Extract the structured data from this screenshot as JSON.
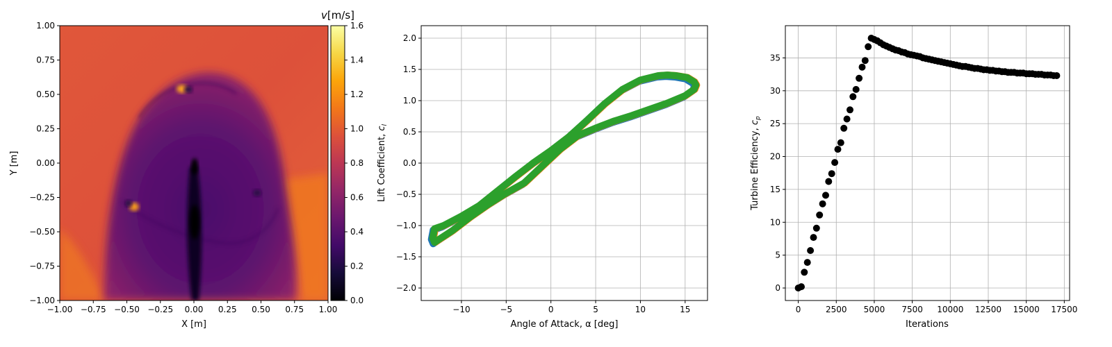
{
  "chart_data": [
    {
      "type": "heatmap",
      "xlabel": "X [m]",
      "ylabel": "Y [m]",
      "xlim": [
        -1.0,
        1.0
      ],
      "ylim": [
        -1.0,
        1.0
      ],
      "xticks": [
        "−1.00",
        "−0.75",
        "−0.50",
        "−0.25",
        "0.00",
        "0.25",
        "0.50",
        "0.75",
        "1.00"
      ],
      "yticks": [
        "−1.00",
        "−0.75",
        "−0.50",
        "−0.25",
        "0.00",
        "0.25",
        "0.50",
        "0.75",
        "1.00"
      ],
      "colorbar": {
        "label_var": "v",
        "label_unit": "[m/s]",
        "range": [
          0.0,
          1.6
        ],
        "ticks": [
          "0.0",
          "0.2",
          "0.4",
          "0.6",
          "0.8",
          "1.0",
          "1.2",
          "1.4",
          "1.6"
        ],
        "colormap": "inferno"
      },
      "features": {
        "background_speed": 0.95,
        "wake_speed": 0.45,
        "core_speed": 0.05,
        "blade_positions": [
          {
            "x": -0.08,
            "y": 0.53
          },
          {
            "x": -0.47,
            "y": -0.33
          },
          {
            "x": 0.47,
            "y": -0.22
          },
          {
            "x": 0.0,
            "y": -0.35
          }
        ]
      }
    },
    {
      "type": "line",
      "xlabel": "Angle of Attack, α [deg]",
      "ylabel_prefix": "Lift Coefficient, ",
      "ylabel_var": "c",
      "ylabel_sub": "l",
      "xlim": [
        -14.5,
        17.5
      ],
      "ylim": [
        -2.2,
        2.2
      ],
      "xticks": [
        -10,
        -5,
        0,
        5,
        10,
        15
      ],
      "yticks": [
        "−2.0",
        "−1.5",
        "−1.0",
        "−0.5",
        "0.0",
        "0.5",
        "1.0",
        "1.5",
        "2.0"
      ],
      "grid": true,
      "series_colors": [
        "#1f77b4",
        "#ff7f0e",
        "#2ca02c"
      ],
      "upper_branch": [
        [
          -13,
          -1.05
        ],
        [
          -12,
          -1.0
        ],
        [
          -10,
          -0.85
        ],
        [
          -8,
          -0.68
        ],
        [
          -6,
          -0.45
        ],
        [
          -4,
          -0.22
        ],
        [
          -2,
          0.0
        ],
        [
          0,
          0.2
        ],
        [
          2,
          0.42
        ],
        [
          4,
          0.68
        ],
        [
          6,
          0.95
        ],
        [
          8,
          1.18
        ],
        [
          10,
          1.33
        ],
        [
          12,
          1.4
        ],
        [
          13,
          1.41
        ],
        [
          14,
          1.4
        ],
        [
          15.2,
          1.37
        ],
        [
          16,
          1.3
        ],
        [
          16.2,
          1.25
        ]
      ],
      "lower_branch": [
        [
          16.2,
          1.25
        ],
        [
          16,
          1.18
        ],
        [
          15,
          1.08
        ],
        [
          13,
          0.96
        ],
        [
          11,
          0.86
        ],
        [
          9,
          0.76
        ],
        [
          7,
          0.67
        ],
        [
          5,
          0.56
        ],
        [
          3,
          0.44
        ],
        [
          1,
          0.22
        ],
        [
          -1,
          -0.05
        ],
        [
          -3,
          -0.32
        ],
        [
          -5,
          -0.48
        ],
        [
          -7,
          -0.66
        ],
        [
          -9,
          -0.86
        ],
        [
          -11,
          -1.08
        ],
        [
          -12.5,
          -1.22
        ],
        [
          -13,
          -1.27
        ],
        [
          -13.2,
          -1.2
        ],
        [
          -13,
          -1.05
        ]
      ]
    },
    {
      "type": "scatter",
      "xlabel": "Iterations",
      "ylabel_prefix": "Turbine Efficiency, ",
      "ylabel_var": "c",
      "ylabel_sub": "p",
      "xlim": [
        -850,
        17850
      ],
      "ylim": [
        -1.9,
        39.9
      ],
      "xticks": [
        0,
        2500,
        5000,
        7500,
        10000,
        12500,
        15000,
        17500
      ],
      "yticks": [
        0,
        5,
        10,
        15,
        20,
        25,
        30,
        35
      ],
      "grid": true,
      "marker_color": "#000000",
      "x": [
        0,
        200,
        400,
        600,
        800,
        1000,
        1200,
        1400,
        1600,
        1800,
        2000,
        2200,
        2400,
        2600,
        2800,
        3000,
        3200,
        3400,
        3600,
        3800,
        4000,
        4200,
        4400,
        4600,
        4800,
        5000,
        5200,
        5400,
        5600,
        5800,
        6000,
        6200,
        6400,
        6600,
        6800,
        7000,
        7200,
        7400,
        7600,
        7800,
        8000,
        8200,
        8400,
        8600,
        8800,
        9000,
        9200,
        9400,
        9600,
        9800,
        10000,
        10200,
        10400,
        10600,
        10800,
        11000,
        11200,
        11400,
        11600,
        11800,
        12000,
        12200,
        12400,
        12600,
        12800,
        13000,
        13200,
        13400,
        13600,
        13800,
        14000,
        14200,
        14400,
        14600,
        14800,
        15000,
        15200,
        15400,
        15600,
        15800,
        16000,
        16200,
        16400,
        16600,
        16800,
        17000
      ],
      "y": [
        0.0,
        0.2,
        2.4,
        3.9,
        5.7,
        7.7,
        9.1,
        11.1,
        12.8,
        14.1,
        16.2,
        17.4,
        19.1,
        21.1,
        22.1,
        24.3,
        25.7,
        27.1,
        29.1,
        30.2,
        31.9,
        33.6,
        34.6,
        36.7,
        38.0,
        37.8,
        37.6,
        37.3,
        37.0,
        36.8,
        36.6,
        36.4,
        36.2,
        36.1,
        35.9,
        35.8,
        35.6,
        35.5,
        35.4,
        35.3,
        35.2,
        35.0,
        34.9,
        34.8,
        34.7,
        34.6,
        34.5,
        34.4,
        34.3,
        34.2,
        34.1,
        34.0,
        33.9,
        33.8,
        33.7,
        33.7,
        33.6,
        33.5,
        33.4,
        33.4,
        33.3,
        33.2,
        33.2,
        33.1,
        33.1,
        33.0,
        33.0,
        32.9,
        32.9,
        32.8,
        32.8,
        32.8,
        32.7,
        32.7,
        32.7,
        32.6,
        32.6,
        32.6,
        32.5,
        32.5,
        32.5,
        32.4,
        32.4,
        32.4,
        32.3,
        32.3
      ]
    }
  ]
}
